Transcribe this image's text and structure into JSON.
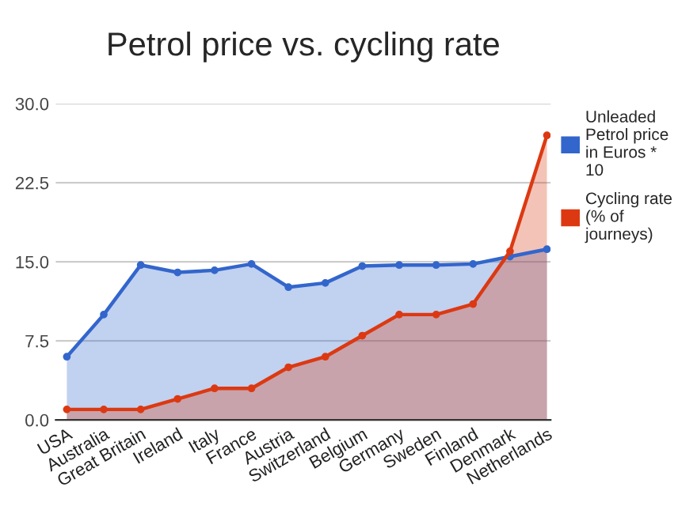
{
  "chart_data": {
    "type": "area",
    "title": "Petrol price vs. cycling rate",
    "categories": [
      "USA",
      "Australia",
      "Great Britain",
      "Ireland",
      "Italy",
      "France",
      "Austria",
      "Switzerland",
      "Belgium",
      "Germany",
      "Sweden",
      "Finland",
      "Denmark",
      "Netherlands"
    ],
    "series": [
      {
        "name": "Unleaded Petrol price in Euros * 10",
        "color": "#3366cc",
        "values": [
          6,
          10,
          14.7,
          14,
          14.2,
          14.8,
          12.6,
          13,
          14.6,
          14.7,
          14.7,
          14.8,
          15.5,
          16.2
        ]
      },
      {
        "name": "Cycling rate (% of journeys)",
        "color": "#dc3912",
        "values": [
          1,
          1,
          1,
          2,
          3,
          3,
          5,
          6,
          8,
          10,
          10,
          11,
          16,
          27
        ]
      }
    ],
    "ylim": [
      0,
      30
    ],
    "yticks": [
      {
        "value": 0,
        "label": "0.0"
      },
      {
        "value": 7.5,
        "label": "7.5"
      },
      {
        "value": 15,
        "label": "15.0"
      },
      {
        "value": 22.5,
        "label": "22.5"
      },
      {
        "value": 30,
        "label": "30.0"
      }
    ],
    "grid": "y",
    "legend": "right",
    "marker": "circle",
    "line_style": "solid"
  }
}
